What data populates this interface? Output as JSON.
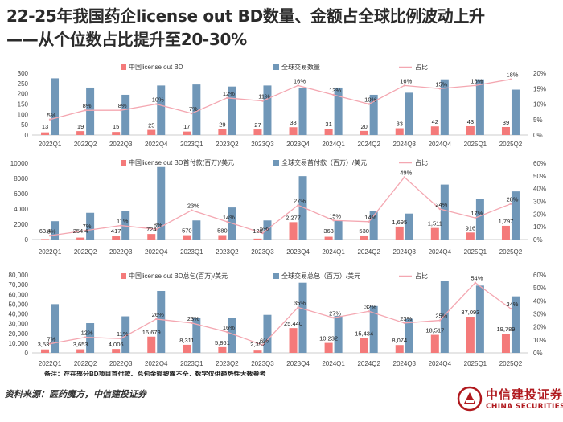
{
  "title_lines": [
    "22-25年我国药企license out BD数量、金额占全球比例波动上升",
    "——从个位数占比提升至20-30%"
  ],
  "source": "资料来源：医药魔方，中信建投证券",
  "logo": {
    "cn": "中信建投证券",
    "en": "CHINA SECURITIES"
  },
  "colors": {
    "china": "#f47a7a",
    "global": "#7097b8",
    "share": "#f4a7b1"
  },
  "chart_data": [
    {
      "type": "bar",
      "categories": [
        "2022Q1",
        "2022Q2",
        "2022Q3",
        "2022Q4",
        "2023Q1",
        "2023Q2",
        "2023Q3",
        "2023Q4",
        "2024Q1",
        "2024Q2",
        "2024Q3",
        "2024Q4",
        "2025Q1",
        "2025Q2"
      ],
      "series": [
        {
          "name": "中国license out BD",
          "axis": "left",
          "style": "bar",
          "values": [
            13,
            19,
            15,
            25,
            17,
            29,
            27,
            38,
            31,
            20,
            33,
            42,
            43,
            39
          ],
          "labels": [
            "13",
            "19",
            "15",
            "25",
            "17",
            "29",
            "27",
            "38",
            "31",
            "20",
            "33",
            "42",
            "43",
            "39"
          ]
        },
        {
          "name": "全球交易数量",
          "axis": "left",
          "style": "bar",
          "values": [
            275,
            230,
            195,
            240,
            245,
            235,
            240,
            230,
            230,
            195,
            205,
            270,
            270,
            220
          ]
        },
        {
          "name": "占比",
          "axis": "right",
          "style": "line",
          "values": [
            5,
            8,
            8,
            10,
            7,
            12,
            11,
            16,
            13,
            10,
            16,
            15,
            16,
            18
          ],
          "labels": [
            "5%",
            "8%",
            "8%",
            "10%",
            "7%",
            "12%",
            "11%",
            "16%",
            "13%",
            "10%",
            "16%",
            "15%",
            "16%",
            "18%"
          ]
        }
      ],
      "ylim": [
        0,
        300
      ],
      "yticks": [
        "0",
        "50",
        "100",
        "150",
        "200",
        "250",
        "300"
      ],
      "y2lim": [
        0,
        20
      ],
      "y2ticks": [
        "0%",
        "5%",
        "10%",
        "15%",
        "20%"
      ],
      "legend": "top"
    },
    {
      "type": "bar",
      "categories": [
        "2022Q1",
        "2022Q2",
        "2022Q3",
        "2022Q4",
        "2023Q1",
        "2023Q2",
        "2023Q3",
        "2023Q4",
        "2024Q1",
        "2024Q2",
        "2024Q3",
        "2024Q4",
        "2025Q1",
        "2025Q2"
      ],
      "series": [
        {
          "name": "中国license out BD首付款(百万)/美元",
          "axis": "left",
          "style": "bar",
          "values": [
            63.4,
            254.4,
            417,
            724,
            570,
            580,
            120,
            2277,
            363,
            530,
            1695,
            1511,
            916,
            1797
          ],
          "labels": [
            "63.4",
            "254.4",
            "417",
            "724",
            "570",
            "580",
            "120",
            "2,277",
            "363",
            "530",
            "1,695",
            "1,511",
            "916",
            "1,797"
          ]
        },
        {
          "name": "全球交易首付款（百万）/美元",
          "axis": "left",
          "style": "bar",
          "values": [
            2400,
            3500,
            3700,
            9500,
            2500,
            4200,
            2500,
            8300,
            2500,
            3700,
            3400,
            7200,
            5300,
            6300
          ]
        },
        {
          "name": "占比",
          "axis": "right",
          "style": "line",
          "values": [
            3,
            7,
            11,
            8,
            23,
            14,
            5,
            27,
            15,
            14,
            49,
            24,
            17,
            28
          ],
          "labels": [
            "3%",
            "7%",
            "11%",
            "8%",
            "23%",
            "14%",
            "5%",
            "27%",
            "15%",
            "14%",
            "49%",
            "24%",
            "17%",
            "28%"
          ]
        }
      ],
      "ylim": [
        0,
        10000
      ],
      "yticks": [
        "0",
        "2000",
        "4000",
        "6000",
        "8000",
        "10000"
      ],
      "y2lim": [
        0,
        60
      ],
      "y2ticks": [
        "0%",
        "10%",
        "20%",
        "30%",
        "40%",
        "50%",
        "60%"
      ],
      "legend": "top"
    },
    {
      "type": "bar",
      "categories": [
        "2022Q1",
        "2022Q2",
        "2022Q3",
        "2022Q4",
        "2023Q1",
        "2023Q2",
        "2023Q3",
        "2023Q4",
        "2024Q1",
        "2024Q2",
        "2024Q3",
        "2024Q4",
        "2025Q1",
        "2025Q2"
      ],
      "series": [
        {
          "name": "中国license out BD总包(百万)/美元",
          "axis": "left",
          "style": "bar",
          "values": [
            3531,
            3653,
            4006,
            16679,
            8311,
            5861,
            2352,
            25440,
            10232,
            15434,
            8074,
            18517,
            37093,
            19789
          ],
          "labels": [
            "3,531",
            "3,653",
            "4,006",
            "16,679",
            "8,311",
            "5,861",
            "2,352",
            "25,440",
            "10,232",
            "15,434",
            "8,074",
            "18,517",
            "37,093",
            "19,789"
          ]
        },
        {
          "name": "全球交易总包（百万）/美元",
          "axis": "left",
          "style": "bar",
          "values": [
            50000,
            30500,
            37500,
            63500,
            36000,
            36000,
            39000,
            72000,
            38000,
            48000,
            35000,
            74000,
            69000,
            58000
          ]
        },
        {
          "name": "占比",
          "axis": "right",
          "style": "line",
          "values": [
            7,
            12,
            11,
            26,
            23,
            16,
            6,
            35,
            27,
            32,
            23,
            25,
            54,
            34
          ],
          "labels": [
            "7%",
            "12%",
            "11%",
            "26%",
            "23%",
            "16%",
            "6%",
            "35%",
            "27%",
            "32%",
            "23%",
            "25%",
            "54%",
            "34%"
          ]
        }
      ],
      "ylim": [
        0,
        80000
      ],
      "yticks": [
        "0",
        "10,000",
        "20,000",
        "30,000",
        "40,000",
        "50,000",
        "60,000",
        "70,000",
        "80,000"
      ],
      "y2lim": [
        0,
        60
      ],
      "y2ticks": [
        "0%",
        "10%",
        "20%",
        "30%",
        "40%",
        "50%",
        "60%"
      ],
      "legend": "top",
      "note": "备注：存在部分BD项目首付款、总包金额披露不全，数字仅供趋势性大数参考"
    }
  ]
}
